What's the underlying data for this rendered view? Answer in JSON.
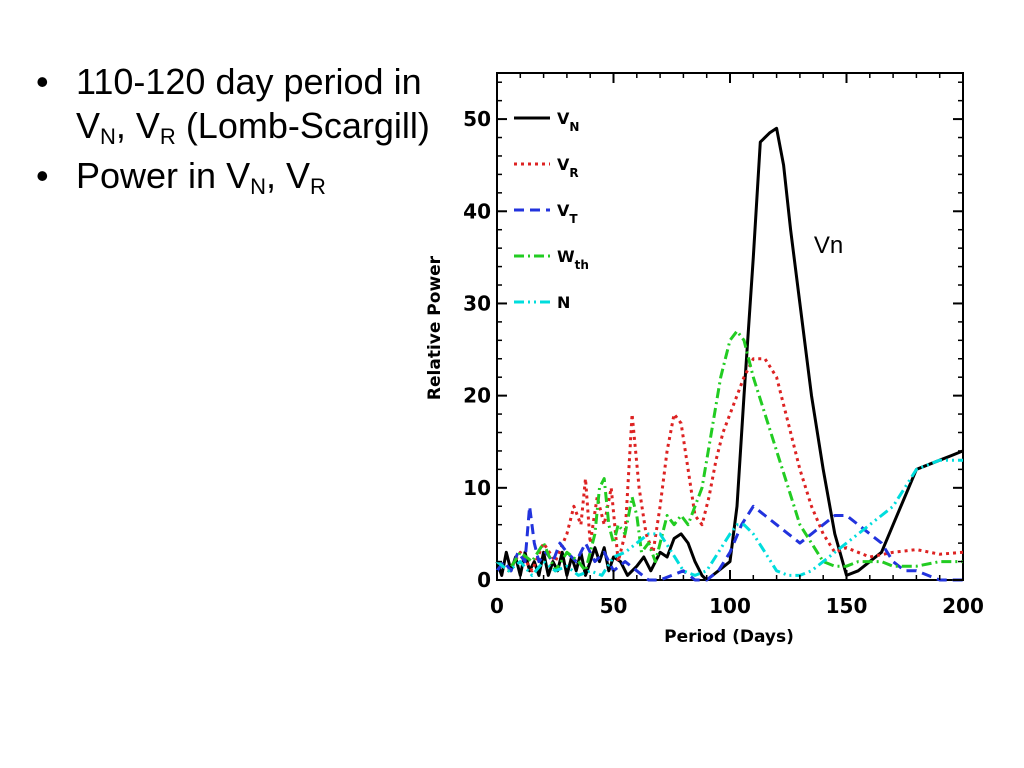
{
  "bullets": [
    {
      "parts": [
        "110-120 day period in V",
        "N",
        ", V",
        "R",
        " (Lomb-Scargill)"
      ]
    },
    {
      "parts": [
        "Power in V",
        "N",
        ", V",
        "R",
        ""
      ]
    }
  ],
  "chart_data": {
    "type": "line",
    "xlabel": "Period (Days)",
    "ylabel": "Relative Power",
    "xlim": [
      0,
      200
    ],
    "ylim": [
      0,
      55
    ],
    "xticks": [
      0,
      50,
      100,
      150,
      200
    ],
    "yticks": [
      0,
      10,
      20,
      30,
      40,
      50
    ],
    "grid": false,
    "legend_position": "top-left",
    "annotations": [
      {
        "text": "Vn",
        "x": 136,
        "y": 35.5
      }
    ],
    "series": [
      {
        "name": "V",
        "sub": "N",
        "color": "#000000",
        "dash": "",
        "x": [
          0,
          2,
          4,
          6,
          8,
          10,
          12,
          14,
          16,
          18,
          20,
          22,
          24,
          26,
          28,
          30,
          32,
          34,
          36,
          38,
          40,
          42,
          44,
          46,
          48,
          50,
          53,
          56,
          60,
          63,
          66,
          70,
          73,
          76,
          79,
          82,
          85,
          88,
          90,
          95,
          100,
          103,
          106,
          110,
          113,
          117,
          120,
          123,
          126,
          130,
          135,
          140,
          145,
          150,
          155,
          160,
          165,
          170,
          175,
          180,
          185,
          190,
          195,
          200
        ],
        "y": [
          2,
          0.5,
          3,
          1,
          2.5,
          0.5,
          3,
          1,
          2,
          0.5,
          3,
          0.5,
          2,
          1,
          3,
          0.5,
          2.5,
          1,
          3,
          0.5,
          2,
          3.5,
          2,
          3.5,
          1,
          2.5,
          2,
          0.5,
          1.5,
          2.5,
          1,
          3,
          2.5,
          4.5,
          5,
          4,
          2,
          0.5,
          0,
          1,
          2,
          8,
          20,
          35,
          47.5,
          48.5,
          49,
          45,
          38,
          30,
          20,
          12,
          5,
          0.5,
          1,
          2,
          3,
          6,
          9,
          12,
          12.5,
          13,
          13.5,
          14
        ]
      },
      {
        "name": "V",
        "sub": "R",
        "color": "#dd2222",
        "dash": "3,4",
        "x": [
          0,
          5,
          10,
          15,
          20,
          25,
          30,
          33,
          36,
          38,
          40,
          43,
          46,
          49,
          52,
          55,
          58,
          61,
          64,
          67,
          70,
          73,
          76,
          79,
          82,
          85,
          88,
          91,
          94,
          97,
          100,
          103,
          106,
          110,
          115,
          120,
          125,
          130,
          135,
          140,
          145,
          150,
          160,
          170,
          180,
          190,
          200
        ],
        "y": [
          2,
          1,
          3,
          1,
          4,
          2,
          5,
          8,
          6,
          11,
          4,
          9,
          6,
          10,
          2,
          5,
          18,
          10,
          5,
          3,
          8,
          14,
          18,
          17,
          12,
          7,
          6,
          9,
          13,
          16,
          18,
          20,
          22,
          24,
          24,
          22,
          17,
          12,
          8,
          5,
          3,
          3.5,
          2.5,
          3,
          3.3,
          2.8,
          3
        ]
      },
      {
        "name": "V",
        "sub": "T",
        "color": "#2233dd",
        "dash": "10,6",
        "x": [
          0,
          3,
          6,
          9,
          12,
          14,
          16,
          18,
          21,
          24,
          27,
          30,
          34,
          38,
          42,
          46,
          50,
          55,
          60,
          65,
          70,
          75,
          80,
          85,
          90,
          95,
          100,
          105,
          110,
          115,
          120,
          125,
          130,
          135,
          140,
          145,
          150,
          155,
          160,
          165,
          170,
          175,
          180,
          185,
          190,
          195,
          200
        ],
        "y": [
          1,
          2,
          1,
          3,
          2,
          8,
          4,
          2,
          3,
          2,
          4,
          3,
          2,
          4,
          2,
          3,
          1,
          2,
          1,
          0,
          0,
          0.5,
          1,
          0,
          0,
          1,
          3,
          6,
          8,
          7,
          6,
          5,
          4,
          5,
          6,
          7,
          7,
          6,
          5,
          4,
          2,
          1,
          1,
          0.5,
          0,
          0,
          0
        ]
      },
      {
        "name": "W",
        "sub": "th",
        "color": "#22cc22",
        "dash": "10,4,2,4",
        "x": [
          0,
          5,
          10,
          15,
          20,
          25,
          30,
          35,
          38,
          40,
          42,
          44,
          46,
          48,
          50,
          52,
          55,
          58,
          60,
          62,
          65,
          68,
          70,
          73,
          76,
          79,
          82,
          85,
          88,
          92,
          96,
          100,
          103,
          106,
          110,
          115,
          120,
          125,
          130,
          135,
          140,
          145,
          150,
          155,
          160,
          165,
          170,
          180,
          190,
          200
        ],
        "y": [
          2,
          1,
          3,
          2,
          4,
          1,
          3,
          2,
          1,
          3,
          5,
          10,
          11,
          6,
          4,
          6,
          5,
          9,
          7,
          3,
          4,
          2,
          4,
          7,
          6,
          7,
          6,
          8,
          10,
          16,
          22,
          26,
          27,
          26,
          22,
          18,
          14,
          10,
          6,
          4,
          2,
          1.5,
          1.5,
          2,
          2,
          2,
          1.5,
          1.5,
          2,
          2
        ]
      },
      {
        "name": "N",
        "sub": "",
        "color": "#00dddd",
        "dash": "10,4,2,4,2,4",
        "x": [
          0,
          5,
          10,
          15,
          20,
          25,
          30,
          35,
          40,
          45,
          50,
          55,
          60,
          65,
          70,
          75,
          80,
          85,
          90,
          95,
          100,
          103,
          106,
          110,
          115,
          120,
          125,
          130,
          135,
          140,
          145,
          150,
          155,
          160,
          165,
          170,
          175,
          180,
          185,
          190,
          195,
          200
        ],
        "y": [
          2,
          1,
          2,
          0.5,
          2,
          1,
          1.5,
          0.5,
          1,
          0.5,
          2.5,
          3,
          4,
          5,
          5,
          3,
          1,
          0.5,
          1,
          3,
          5,
          6,
          6,
          5,
          3,
          1,
          0.5,
          0.5,
          1,
          2,
          3,
          4,
          5,
          6,
          7,
          8,
          10,
          12,
          12.5,
          13,
          13,
          13
        ]
      }
    ]
  }
}
